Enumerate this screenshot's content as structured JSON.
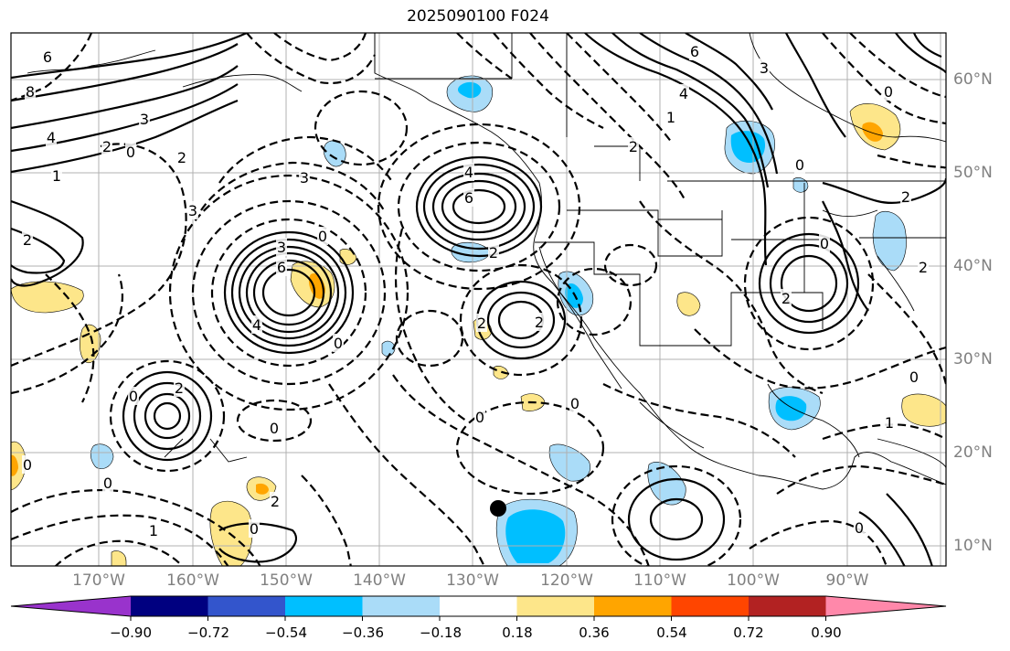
{
  "title": "2025090100 F024",
  "lat_labels": [
    "60°N",
    "50°N",
    "40°N",
    "30°N",
    "20°N",
    "10°N"
  ],
  "lon_labels": [
    "170°W",
    "160°W",
    "150°W",
    "140°W",
    "130°W",
    "120°W",
    "110°W",
    "100°W",
    "90°W"
  ],
  "colorbar": {
    "colors": [
      "#9933cc",
      "#000080",
      "#3355cc",
      "#00bfff",
      "#aadcf8",
      "#ffffff",
      "#fde68a",
      "#ffa500",
      "#ff4500",
      "#b22222",
      "#ff88aa"
    ],
    "labels": [
      "−0.90",
      "−0.72",
      "−0.54",
      "−0.36",
      "−0.18",
      "0.18",
      "0.36",
      "0.54",
      "0.72",
      "0.90"
    ]
  },
  "contour_labels": [
    "6",
    "8",
    "3",
    "4",
    "2",
    "0",
    "1",
    "2",
    "3",
    "3",
    "2",
    "6",
    "3",
    "0",
    "4",
    "2",
    "6",
    "4",
    "2",
    "2",
    "0",
    "0",
    "2",
    "0",
    "0",
    "2",
    "0",
    "0",
    "1",
    "0",
    "0",
    "6",
    "4",
    "1",
    "3",
    "2",
    "0",
    "0",
    "2",
    "2",
    "2",
    "0",
    "0",
    "1",
    "0"
  ],
  "colors": {
    "contour": "#000000",
    "grid": "#b0b0b0",
    "axis_label": "#808080"
  }
}
